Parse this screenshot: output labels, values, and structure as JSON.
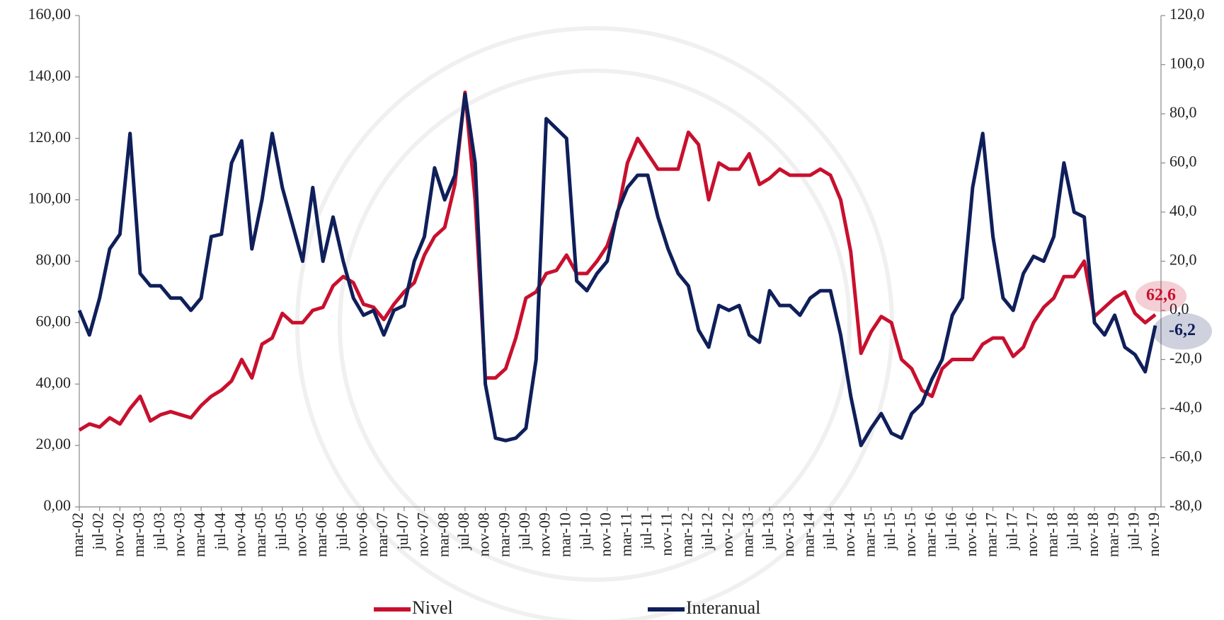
{
  "chart_data": {
    "type": "line",
    "categories": [
      "mar-02",
      null,
      "jul-02",
      null,
      "nov-02",
      null,
      "mar-03",
      null,
      "jul-03",
      null,
      "nov-03",
      null,
      "mar-04",
      null,
      "jul-04",
      null,
      "nov-04",
      null,
      "mar-05",
      null,
      "jul-05",
      null,
      "nov-05",
      null,
      "mar-06",
      null,
      "jul-06",
      null,
      "nov-06",
      null,
      "mar-07",
      null,
      "jul-07",
      null,
      "nov-07",
      null,
      "mar-08",
      null,
      "jul-08",
      null,
      "nov-08",
      null,
      "mar-09",
      null,
      "jul-09",
      null,
      "nov-09",
      null,
      "mar-10",
      null,
      "jul-10",
      null,
      "nov-10",
      null,
      "mar-11",
      null,
      "jul-11",
      null,
      "nov-11",
      null,
      "mar-12",
      null,
      "jul-12",
      null,
      "nov-12",
      null,
      "mar-13",
      null,
      "jul-13",
      null,
      "nov-13",
      null,
      "mar-14",
      null,
      "jul-14",
      null,
      "nov-14",
      null,
      "mar-15",
      null,
      "jul-15",
      null,
      "nov-15",
      null,
      "mar-16",
      null,
      "jul-16",
      null,
      "nov-16",
      null,
      "mar-17",
      null,
      "jul-17",
      null,
      "nov-17",
      null,
      "mar-18",
      null,
      "jul-18",
      null,
      "nov-18",
      null,
      "mar-19",
      null,
      "jul-19",
      null,
      "nov-19"
    ],
    "series": [
      {
        "name": "Nivel",
        "color": "#c8102e",
        "values": [
          25,
          27,
          26,
          29,
          27,
          32,
          36,
          28,
          30,
          31,
          30,
          29,
          33,
          36,
          38,
          41,
          48,
          42,
          53,
          55,
          63,
          60,
          60,
          64,
          65,
          72,
          75,
          73,
          66,
          65,
          61,
          66,
          70,
          73,
          82,
          88,
          91,
          105,
          135,
          100,
          42,
          42,
          45,
          55,
          68,
          70,
          76,
          77,
          82,
          76,
          76,
          80,
          85,
          95,
          112,
          120,
          115,
          110,
          110,
          110,
          122,
          118,
          100,
          112,
          110,
          110,
          115,
          105,
          107,
          110,
          108,
          108,
          108,
          110,
          108,
          100,
          83,
          50,
          57,
          62,
          60,
          48,
          45,
          38,
          36,
          45,
          48,
          48,
          48,
          53,
          55,
          55,
          49,
          52,
          60,
          65,
          68,
          75,
          75,
          80,
          62,
          65,
          68,
          70,
          63,
          60,
          62.6
        ],
        "value_labels": [
          null,
          null,
          null,
          null,
          null,
          null,
          null,
          null,
          null,
          null,
          null,
          null,
          null,
          null,
          null,
          null,
          null,
          null,
          null,
          null,
          null,
          null,
          null,
          null,
          null,
          null,
          null,
          null,
          null,
          null,
          null,
          null,
          null,
          null,
          null,
          null,
          null,
          null,
          null,
          null,
          null,
          null,
          null,
          null,
          null,
          null,
          null,
          null,
          null,
          null,
          null,
          null,
          null,
          null,
          null,
          null,
          null,
          null,
          null,
          null,
          null,
          null,
          null,
          null,
          null,
          null,
          null,
          null,
          null,
          null,
          null,
          null,
          null,
          null,
          null,
          null,
          null,
          null,
          null,
          null,
          null,
          null,
          null,
          null,
          null,
          null,
          null,
          null,
          null,
          null,
          null,
          null,
          null,
          null,
          null,
          null,
          null,
          null,
          null,
          null,
          null,
          null,
          null,
          null,
          null,
          null,
          "62,6"
        ]
      },
      {
        "name": "Interanual",
        "color": "#0f1f5a",
        "axis": "y2",
        "values": [
          0,
          -10,
          5,
          25,
          31,
          72,
          15,
          10,
          10,
          5,
          5,
          0,
          5,
          30,
          31,
          60,
          69,
          25,
          45,
          72,
          50,
          35,
          20,
          50,
          20,
          38,
          20,
          5,
          -2,
          0,
          -10,
          0,
          2,
          20,
          30,
          58,
          45,
          55,
          88,
          60,
          -30,
          -52,
          -53,
          -52,
          -48,
          -20,
          78,
          74,
          70,
          12,
          8,
          15,
          20,
          40,
          50,
          55,
          55,
          38,
          25,
          15,
          10,
          -8,
          -15,
          2,
          0,
          2,
          -10,
          -13,
          8,
          2,
          2,
          -2,
          5,
          8,
          8,
          -10,
          -35,
          -55,
          -48,
          -42,
          -50,
          -52,
          -42,
          -38,
          -28,
          -20,
          -2,
          5,
          50,
          72,
          30,
          5,
          0,
          15,
          22,
          20,
          30,
          60,
          40,
          38,
          -5,
          -10,
          -2,
          -15,
          -18,
          -25,
          -6.2
        ],
        "value_labels": [
          null,
          null,
          null,
          null,
          null,
          null,
          null,
          null,
          null,
          null,
          null,
          null,
          null,
          null,
          null,
          null,
          null,
          null,
          null,
          null,
          null,
          null,
          null,
          null,
          null,
          null,
          null,
          null,
          null,
          null,
          null,
          null,
          null,
          null,
          null,
          null,
          null,
          null,
          null,
          null,
          null,
          null,
          null,
          null,
          null,
          null,
          null,
          null,
          null,
          null,
          null,
          null,
          null,
          null,
          null,
          null,
          null,
          null,
          null,
          null,
          null,
          null,
          null,
          null,
          null,
          null,
          null,
          null,
          null,
          null,
          null,
          null,
          null,
          null,
          null,
          null,
          null,
          null,
          null,
          null,
          null,
          null,
          null,
          null,
          null,
          null,
          null,
          null,
          null,
          null,
          null,
          null,
          null,
          null,
          null,
          null,
          null,
          null,
          null,
          null,
          null,
          null,
          null,
          null,
          null,
          null,
          "-6,2"
        ]
      }
    ],
    "ylim": [
      0,
      160
    ],
    "yticks": [
      {
        "value": 0,
        "label": "0,00"
      },
      {
        "value": 20,
        "label": "20,00"
      },
      {
        "value": 40,
        "label": "40,00"
      },
      {
        "value": 60,
        "label": "60,00"
      },
      {
        "value": 80,
        "label": "80,00"
      },
      {
        "value": 100,
        "label": "100,00"
      },
      {
        "value": 120,
        "label": "120,00"
      },
      {
        "value": 140,
        "label": "140,00"
      },
      {
        "value": 160,
        "label": "160,00"
      }
    ],
    "y2lim": [
      -80,
      120
    ],
    "y2ticks": [
      {
        "value": -80,
        "label": "-80,0"
      },
      {
        "value": -60,
        "label": "-60,0"
      },
      {
        "value": -40,
        "label": "-40,0"
      },
      {
        "value": -20,
        "label": "-20,0"
      },
      {
        "value": 0,
        "label": "0,0"
      },
      {
        "value": 20,
        "label": "20,0"
      },
      {
        "value": 40,
        "label": "40,0"
      },
      {
        "value": 60,
        "label": "60,0"
      },
      {
        "value": 80,
        "label": "80,0"
      },
      {
        "value": 100,
        "label": "100,0"
      },
      {
        "value": 120,
        "label": "120,0"
      }
    ],
    "legend": "bottom"
  }
}
